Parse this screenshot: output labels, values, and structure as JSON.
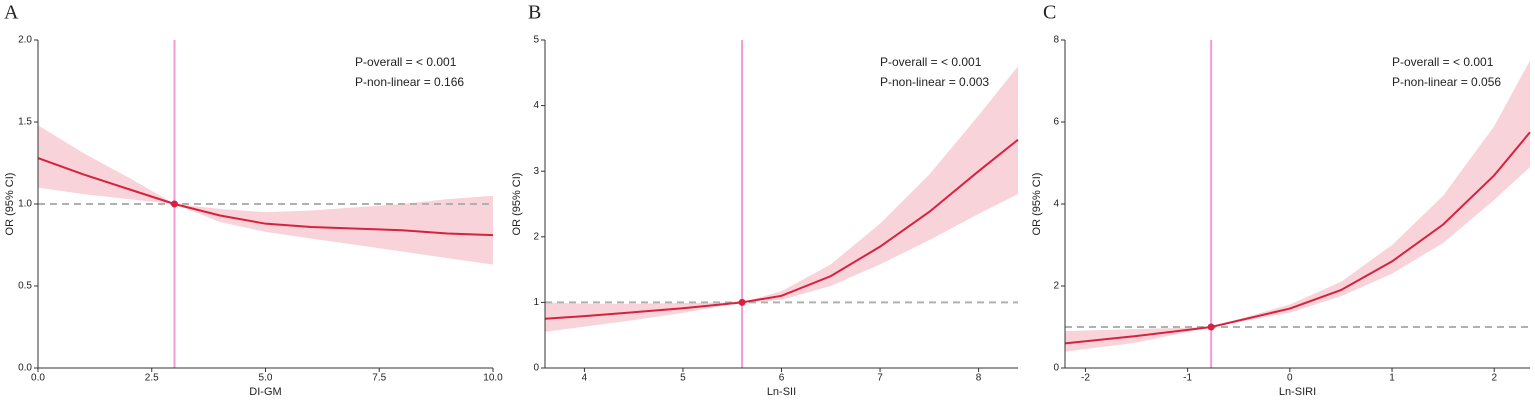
{
  "chart_data": [
    {
      "type": "line",
      "title": "A",
      "x_label": "DI-GM",
      "y_label": "OR (95% CI)",
      "annotations": [
        "P-overall = < 0.001",
        "P-non-linear = 0.166"
      ],
      "x": [
        0,
        1,
        2,
        3,
        4,
        5,
        6,
        7,
        8,
        9,
        10
      ],
      "values": [
        1.28,
        1.18,
        1.09,
        1.0,
        0.93,
        0.88,
        0.86,
        0.85,
        0.84,
        0.82,
        0.81
      ],
      "ci_lower": [
        1.1,
        1.06,
        1.03,
        1.0,
        0.89,
        0.83,
        0.79,
        0.75,
        0.71,
        0.67,
        0.63
      ],
      "ci_upper": [
        1.48,
        1.31,
        1.16,
        1.0,
        0.97,
        0.95,
        0.96,
        0.98,
        1.0,
        1.03,
        1.05
      ],
      "color": "#d6223f",
      "band_color": "#f9d3da",
      "ref_x": 3.0,
      "ref_y": 1,
      "ref_x_color": "#f29bd6",
      "ref_y_color": "#b0b0b0",
      "xlim": [
        0,
        10
      ],
      "ylim": [
        0,
        2
      ],
      "xticks": [
        {
          "value": 0,
          "label": "0.0"
        },
        {
          "value": 2.5,
          "label": "2.5"
        },
        {
          "value": 5,
          "label": "5.0"
        },
        {
          "value": 7.5,
          "label": "7.5"
        },
        {
          "value": 10,
          "label": "10.0"
        }
      ],
      "yticks": [
        {
          "value": 0,
          "label": "0.0"
        },
        {
          "value": 0.5,
          "label": "0.5"
        },
        {
          "value": 1,
          "label": "1.0"
        },
        {
          "value": 1.5,
          "label": "1.5"
        },
        {
          "value": 2,
          "label": "2.0"
        }
      ]
    },
    {
      "type": "line",
      "title": "B",
      "x_label": "Ln-SII",
      "y_label": "OR (95% CI)",
      "annotations": [
        "P-overall = < 0.001",
        "P-non-linear = 0.003"
      ],
      "x": [
        3.6,
        4.0,
        4.5,
        5.0,
        5.6,
        6.0,
        6.5,
        7.0,
        7.5,
        8.0,
        8.4
      ],
      "values": [
        0.75,
        0.79,
        0.85,
        0.91,
        1.0,
        1.1,
        1.4,
        1.85,
        2.38,
        3.0,
        3.48
      ],
      "ci_lower": [
        0.55,
        0.63,
        0.73,
        0.84,
        1.0,
        1.04,
        1.25,
        1.58,
        1.95,
        2.35,
        2.65
      ],
      "ci_upper": [
        1.0,
        0.98,
        0.98,
        0.99,
        1.0,
        1.17,
        1.58,
        2.2,
        2.95,
        3.85,
        4.6
      ],
      "color": "#d6223f",
      "band_color": "#f9d3da",
      "ref_x": 5.6,
      "ref_y": 1,
      "ref_x_color": "#f29bd6",
      "ref_y_color": "#b0b0b0",
      "xlim": [
        3.6,
        8.4
      ],
      "ylim": [
        0,
        5
      ],
      "xticks": [
        4,
        5,
        6,
        7,
        8
      ],
      "yticks": [
        0,
        1,
        2,
        3,
        4,
        5
      ]
    },
    {
      "type": "line",
      "title": "C",
      "x_label": "Ln-SIRI",
      "y_label": "OR (95% CI)",
      "annotations": [
        "P-overall = < 0.001",
        "P-non-linear = 0.056"
      ],
      "x": [
        -2.2,
        -1.5,
        -0.77,
        0,
        0.5,
        1.0,
        1.5,
        2.0,
        2.35
      ],
      "values": [
        0.6,
        0.78,
        1.0,
        1.45,
        1.9,
        2.6,
        3.5,
        4.7,
        5.75
      ],
      "ci_lower": [
        0.4,
        0.62,
        1.0,
        1.35,
        1.75,
        2.3,
        3.05,
        4.1,
        4.9
      ],
      "ci_upper": [
        0.9,
        0.95,
        1.0,
        1.55,
        2.1,
        3.0,
        4.2,
        5.9,
        7.5
      ],
      "color": "#d6223f",
      "band_color": "#f9d3da",
      "ref_x": -0.77,
      "ref_y": 1,
      "ref_x_color": "#f29bd6",
      "ref_y_color": "#b0b0b0",
      "xlim": [
        -2.2,
        2.35
      ],
      "ylim": [
        0,
        8
      ],
      "xticks": [
        -2,
        -1,
        0,
        1,
        2
      ],
      "yticks": [
        0,
        2,
        4,
        6,
        8
      ]
    }
  ]
}
